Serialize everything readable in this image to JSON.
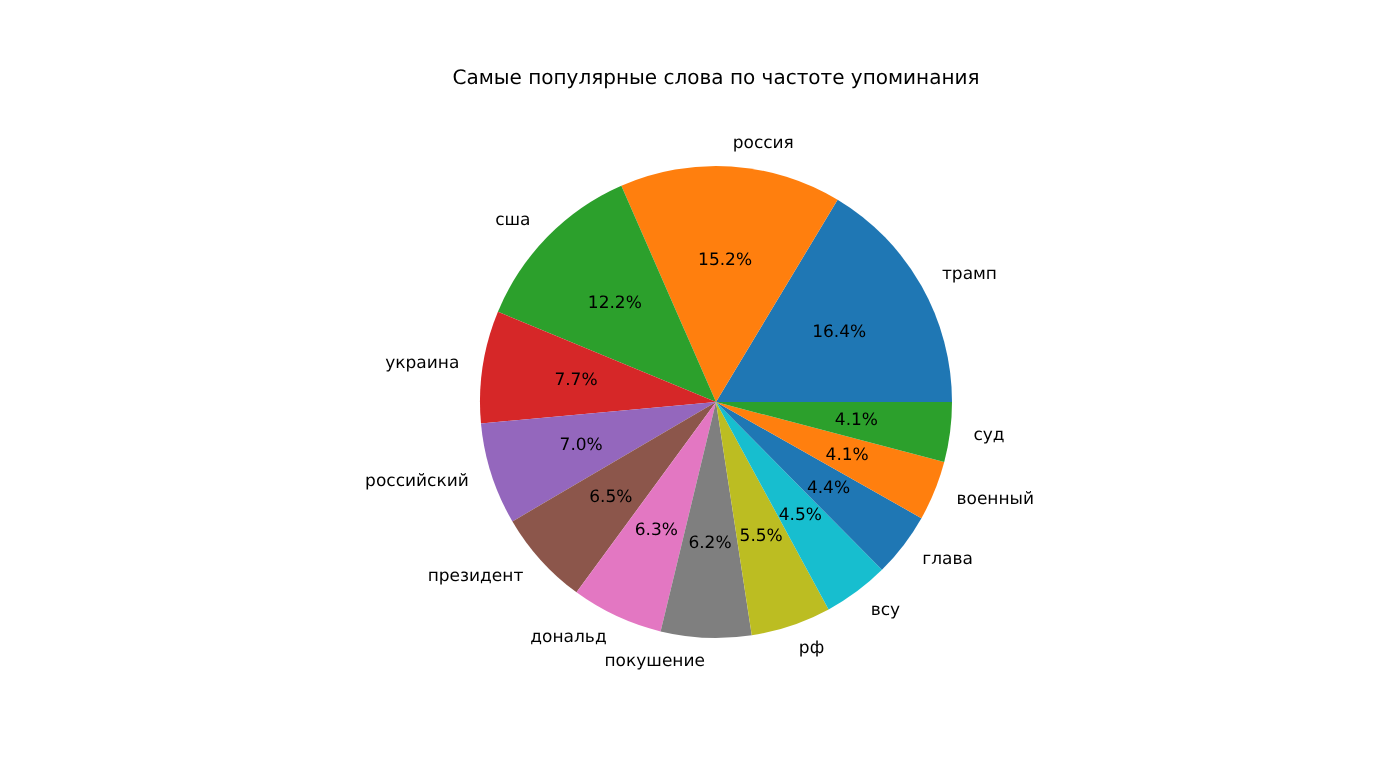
{
  "chart_data": {
    "type": "pie",
    "title": "Самые популярные слова по частоте упоминания",
    "categories": [
      "трамп",
      "россия",
      "сша",
      "украина",
      "российский",
      "президент",
      "дональд",
      "покушение",
      "рф",
      "всу",
      "глава",
      "военный",
      "суд"
    ],
    "values": [
      16.4,
      15.2,
      12.2,
      7.7,
      7.0,
      6.5,
      6.3,
      6.2,
      5.5,
      4.5,
      4.4,
      4.1,
      4.1
    ],
    "colors": [
      "#1f77b4",
      "#ff7f0e",
      "#2ca02c",
      "#d62728",
      "#9467bd",
      "#8c564b",
      "#e377c2",
      "#7f7f7f",
      "#bcbd22",
      "#17becf",
      "#1f77b4",
      "#ff7f0e",
      "#2ca02c"
    ],
    "value_labels": [
      "16.4%",
      "15.2%",
      "12.2%",
      "7.7%",
      "7.0%",
      "6.5%",
      "6.3%",
      "6.2%",
      "5.5%",
      "4.5%",
      "4.4%",
      "4.1%",
      "4.1%"
    ]
  }
}
